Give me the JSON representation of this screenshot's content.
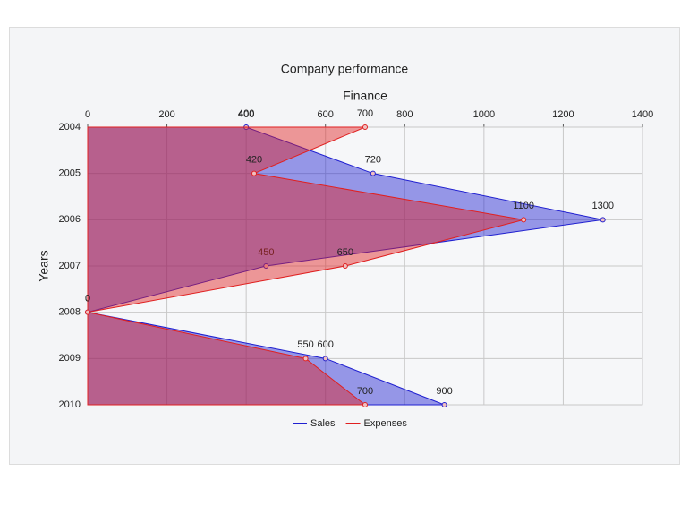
{
  "chart_data": {
    "type": "area",
    "orientation": "horizontal",
    "title": "Company performance",
    "x_label": "Finance",
    "y_label": "Years",
    "categories": [
      "2004",
      "2005",
      "2006",
      "2007",
      "2008",
      "2009",
      "2010"
    ],
    "series": [
      {
        "name": "Sales",
        "color": "#2020d0",
        "values": [
          400,
          720,
          1300,
          450,
          0,
          600,
          900
        ]
      },
      {
        "name": "Expenses",
        "color": "#e02020",
        "values": [
          700,
          420,
          1100,
          650,
          0,
          550,
          700
        ]
      }
    ],
    "xlim": [
      0,
      1400
    ],
    "xticks": [
      0,
      200,
      400,
      600,
      800,
      1000,
      1200,
      1400
    ],
    "grid": true,
    "legend": "bottom"
  }
}
